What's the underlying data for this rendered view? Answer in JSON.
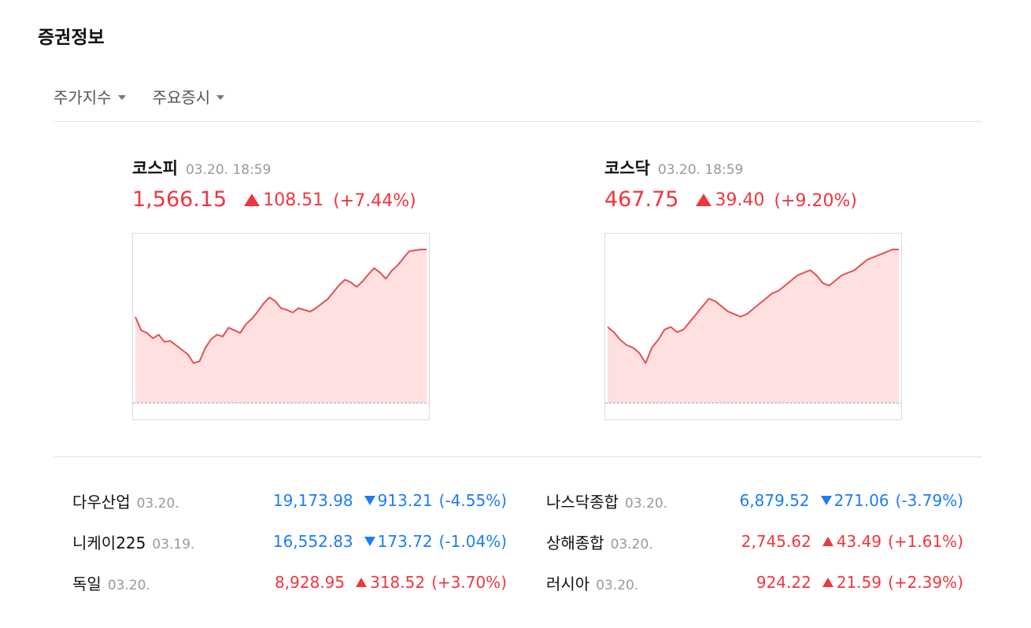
{
  "header": {
    "title": "증권정보"
  },
  "tabs": [
    {
      "label": "주가지수"
    },
    {
      "label": "주요증시"
    }
  ],
  "indices": [
    {
      "name": "코스피",
      "time": "03.20. 18:59",
      "value": "1,566.15",
      "change": "108.51",
      "rate": "(+7.44%)",
      "direction": "up",
      "chart_data": {
        "type": "area",
        "values": [
          1490,
          1475,
          1472,
          1466,
          1470,
          1462,
          1463,
          1458,
          1453,
          1448,
          1438,
          1440,
          1455,
          1465,
          1470,
          1468,
          1478,
          1475,
          1472,
          1482,
          1488,
          1496,
          1505,
          1512,
          1508,
          1500,
          1498,
          1495,
          1500,
          1498,
          1496,
          1500,
          1505,
          1510,
          1518,
          1526,
          1532,
          1529,
          1524,
          1530,
          1538,
          1545,
          1540,
          1533,
          1542,
          1548,
          1556,
          1564,
          1565,
          1566,
          1566
        ]
      }
    },
    {
      "name": "코스닥",
      "time": "03.20. 18:59",
      "value": "467.75",
      "change": "39.40",
      "rate": "(+9.20%)",
      "direction": "up",
      "chart_data": {
        "type": "area",
        "values": [
          438,
          436,
          433,
          431,
          430,
          428,
          424,
          430,
          433,
          437,
          438,
          436,
          437,
          440,
          443,
          446,
          449,
          448,
          446,
          444,
          443,
          442,
          443,
          445,
          447,
          449,
          451,
          452,
          454,
          456,
          458,
          459,
          460,
          458,
          455,
          454,
          456,
          458,
          459,
          460,
          462,
          464,
          465,
          466,
          467,
          468,
          468
        ]
      }
    }
  ],
  "markets": [
    {
      "name": "다우산업",
      "date": "03.20.",
      "value": "19,173.98",
      "change": "913.21",
      "rate": "(-4.55%)",
      "direction": "down"
    },
    {
      "name": "나스닥종합",
      "date": "03.20.",
      "value": "6,879.52",
      "change": "271.06",
      "rate": "(-3.79%)",
      "direction": "down"
    },
    {
      "name": "니케이225",
      "date": "03.19.",
      "value": "16,552.83",
      "change": "173.72",
      "rate": "(-1.04%)",
      "direction": "down"
    },
    {
      "name": "상해종합",
      "date": "03.20.",
      "value": "2,745.62",
      "change": "43.49",
      "rate": "(+1.61%)",
      "direction": "up"
    },
    {
      "name": "독일",
      "date": "03.20.",
      "value": "8,928.95",
      "change": "318.52",
      "rate": "(+3.70%)",
      "direction": "up"
    },
    {
      "name": "러시아",
      "date": "03.20.",
      "value": "924.22",
      "change": "21.59",
      "rate": "(+2.39%)",
      "direction": "up"
    }
  ],
  "colors": {
    "up": "#f0353f",
    "down": "#1b7ef0",
    "area_fill": "#ffe0e0",
    "line": "#e4514f",
    "baseline": "#bdbdbd"
  },
  "icons": {
    "tab_caret": "caret-down-icon",
    "up": "triangle-up-icon",
    "down": "triangle-down-icon"
  }
}
